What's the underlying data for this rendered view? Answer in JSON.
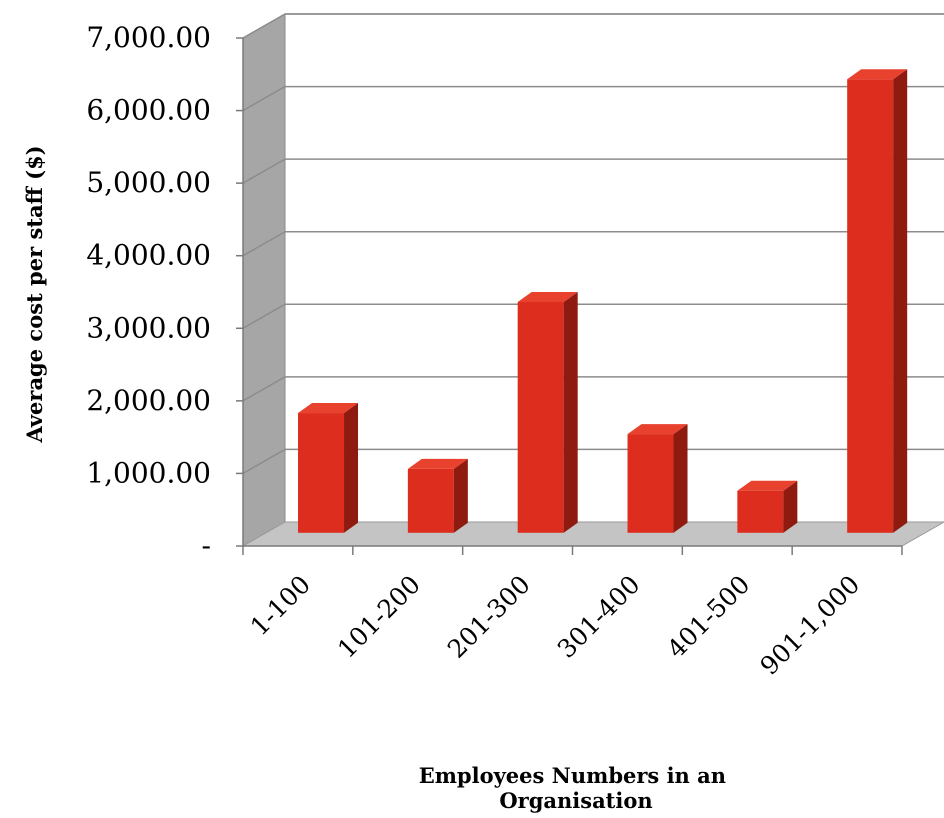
{
  "chart_data": {
    "type": "bar",
    "title": "",
    "xlabel": "Employees Numbers in an Organisation",
    "xlabel_lines": [
      "Employees Numbers in an",
      "Organisation"
    ],
    "ylabel": "Average cost per staff ($)",
    "ylim": [
      0,
      7000
    ],
    "y_ticks": [
      0,
      1000,
      2000,
      3000,
      4000,
      5000,
      6000,
      7000
    ],
    "y_tick_labels": [
      "-",
      "1,000.00",
      "2,000.00",
      "3,000.00",
      "4,000.00",
      "5,000.00",
      "6,000.00",
      "7,000.00"
    ],
    "categories": [
      "1-100",
      "101-200",
      "201-300",
      "301-400",
      "401-500",
      "901-1,000"
    ],
    "values": [
      1650,
      880,
      3180,
      1360,
      580,
      6250
    ],
    "grid": true,
    "legend": "none",
    "style": "3d-column",
    "colors": {
      "bar_front": "#dc2d1e",
      "bar_top": "#e8412e",
      "bar_side": "#8e1a10",
      "left_wall": "#a6a6a6",
      "floor": "#c4c4c4",
      "grid": "#8c8c8c"
    }
  }
}
